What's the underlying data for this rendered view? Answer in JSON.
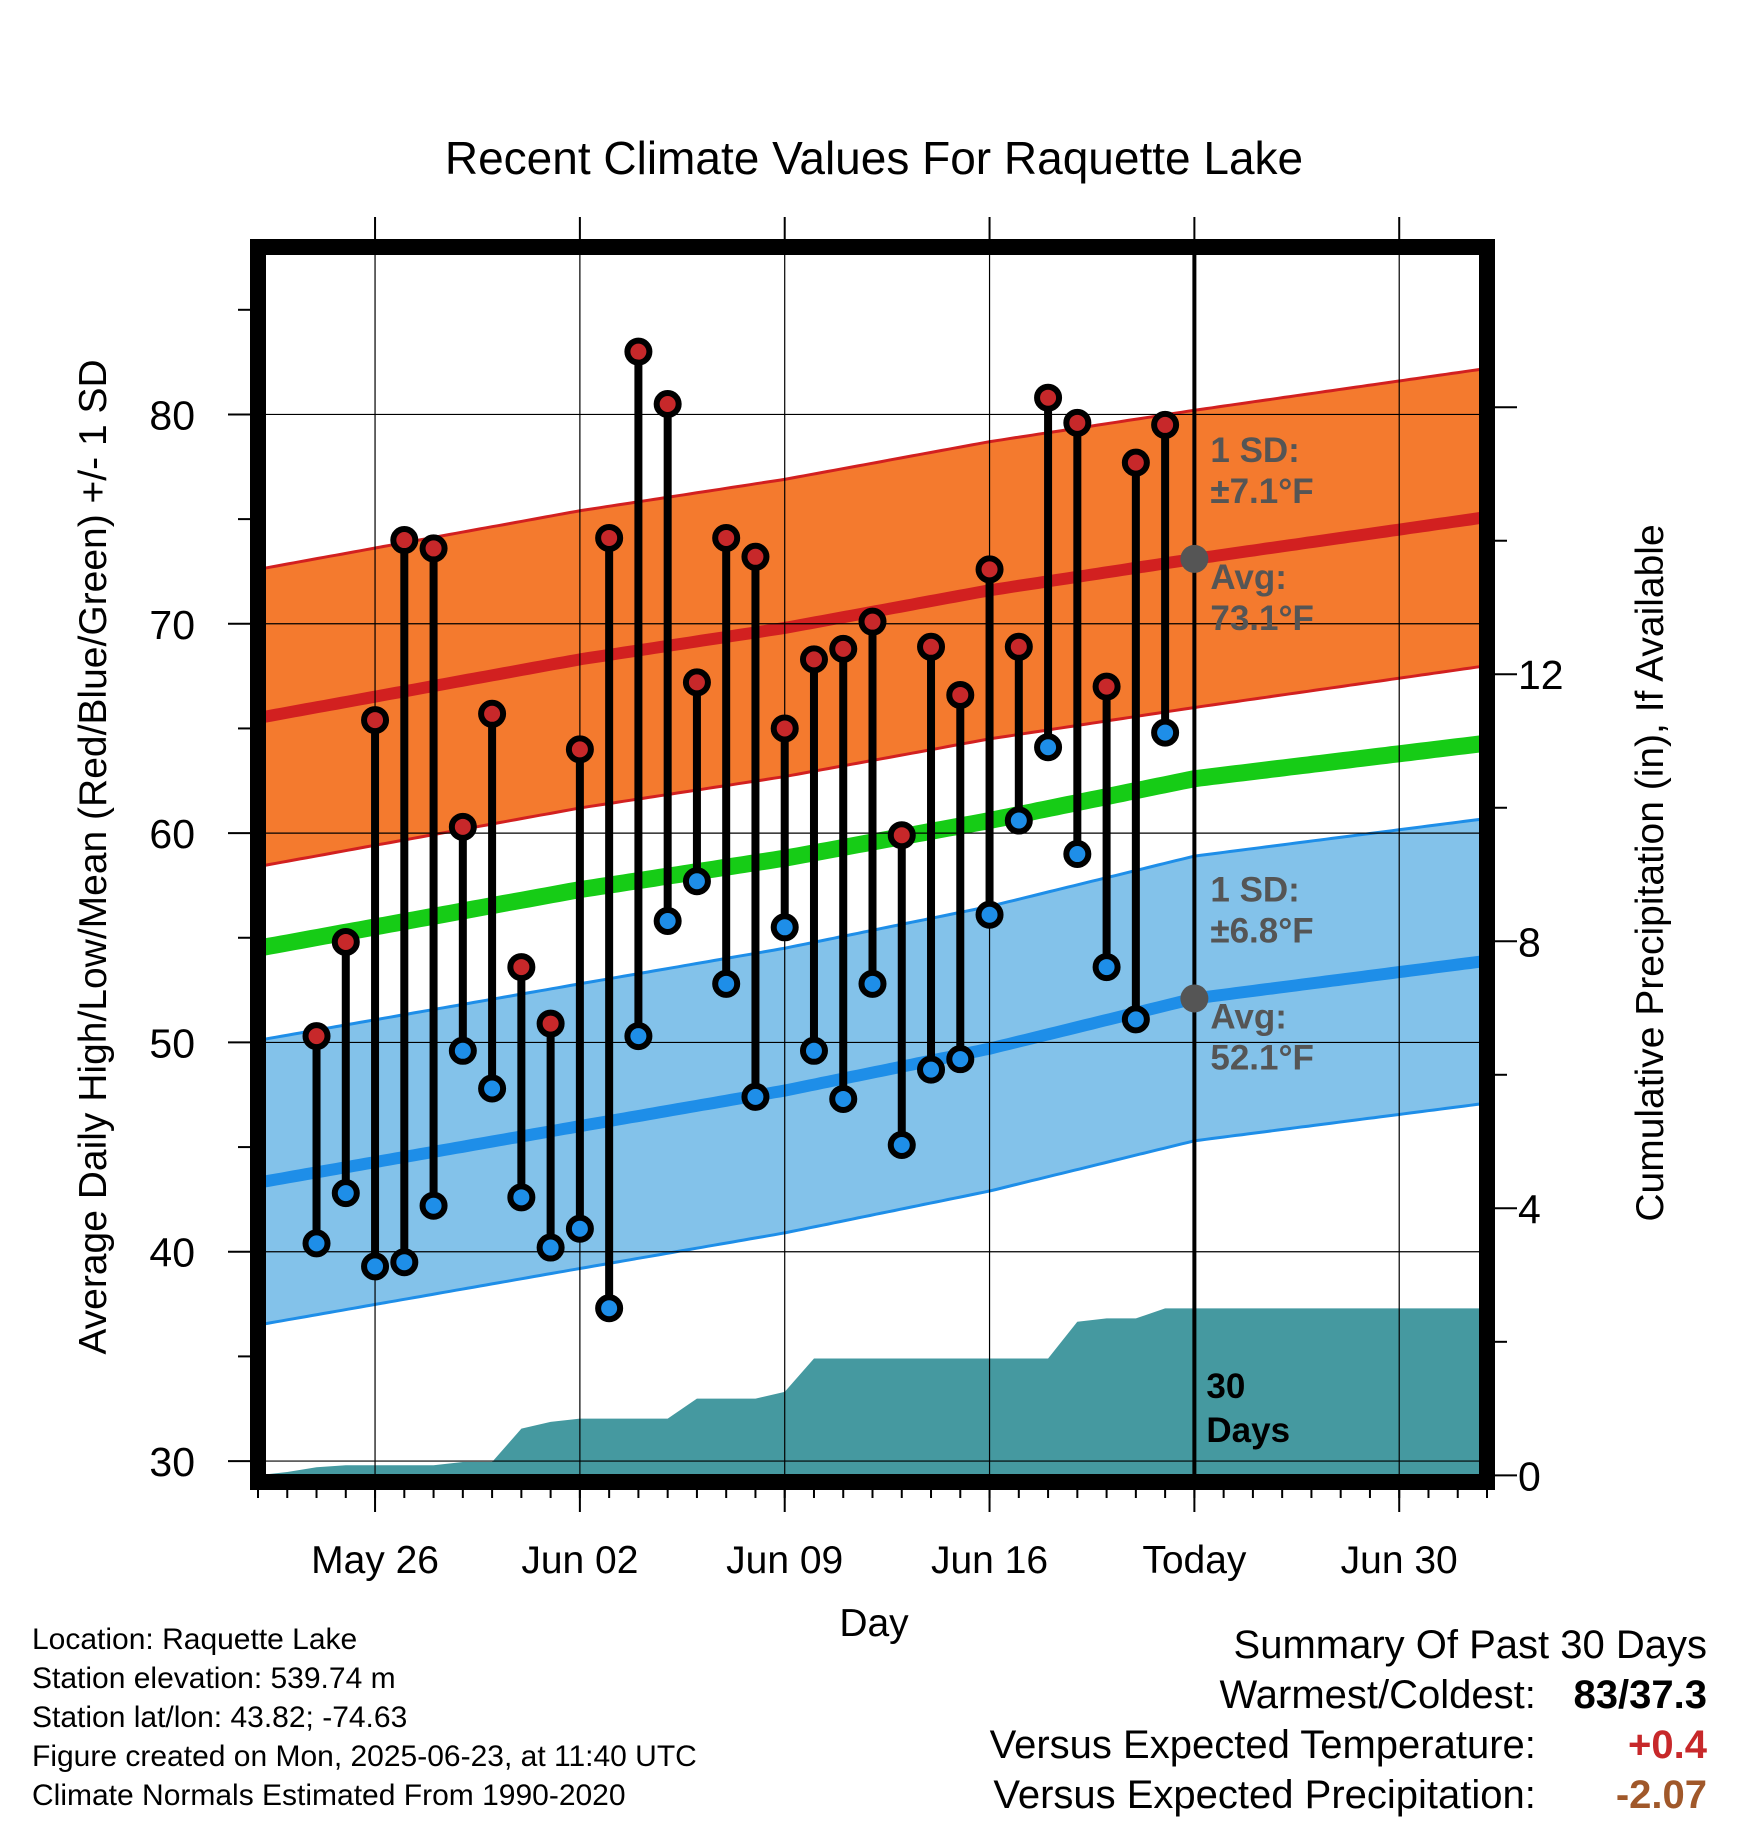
{
  "chart_data": {
    "type": "line",
    "title": "Recent Climate Values For Raquette Lake",
    "xlabel": "Day",
    "ylabel": "Average Daily High/Low/Mean (Red/Blue/Green) +/- 1 SD",
    "y2label": "Cumulative Precipitation (in), If Available",
    "ylim": [
      29,
      88
    ],
    "y_ticks": [
      30,
      40,
      50,
      60,
      70,
      80
    ],
    "y2lim": [
      -0.1,
      18.4
    ],
    "y2_ticks": [
      0,
      4,
      8,
      12
    ],
    "x_range_days": [
      "2025-05-22",
      "2025-07-03"
    ],
    "x_ticks": [
      {
        "date": "2025-05-26",
        "label": "May 26"
      },
      {
        "date": "2025-06-02",
        "label": "Jun 02"
      },
      {
        "date": "2025-06-09",
        "label": "Jun 09"
      },
      {
        "date": "2025-06-16",
        "label": "Jun 16"
      },
      {
        "date": "2025-06-23",
        "label": "Today"
      },
      {
        "date": "2025-06-30",
        "label": "Jun 30"
      }
    ],
    "today": "2025-06-23",
    "grid": true,
    "dates": [
      "2025-05-24",
      "2025-05-25",
      "2025-05-26",
      "2025-05-27",
      "2025-05-28",
      "2025-05-29",
      "2025-05-30",
      "2025-05-31",
      "2025-06-01",
      "2025-06-02",
      "2025-06-03",
      "2025-06-04",
      "2025-06-05",
      "2025-06-06",
      "2025-06-07",
      "2025-06-08",
      "2025-06-09",
      "2025-06-10",
      "2025-06-11",
      "2025-06-12",
      "2025-06-13",
      "2025-06-14",
      "2025-06-15",
      "2025-06-16",
      "2025-06-17",
      "2025-06-18",
      "2025-06-19",
      "2025-06-20",
      "2025-06-21",
      "2025-06-22"
    ],
    "series": [
      {
        "name": "High",
        "color": "#c7282a",
        "values": [
          50.3,
          54.8,
          65.4,
          74.0,
          73.6,
          60.3,
          65.7,
          53.6,
          50.9,
          64.0,
          74.1,
          83.0,
          80.5,
          67.2,
          74.1,
          73.2,
          65.0,
          68.3,
          68.8,
          70.1,
          59.9,
          68.9,
          66.6,
          72.6,
          68.9,
          80.8,
          79.6,
          67.0,
          77.7,
          79.5
        ]
      },
      {
        "name": "Low",
        "color": "#1e8ee8",
        "values": [
          40.4,
          42.8,
          39.3,
          39.5,
          42.2,
          49.6,
          47.8,
          42.6,
          40.2,
          41.1,
          37.3,
          50.3,
          55.8,
          57.7,
          52.8,
          47.4,
          55.5,
          49.6,
          47.3,
          52.8,
          45.1,
          48.7,
          49.2,
          56.1,
          60.6,
          64.1,
          59.0,
          53.6,
          51.1,
          64.8
        ]
      }
    ],
    "normals": {
      "dates": [
        "2025-05-22",
        "2025-06-02",
        "2025-06-09",
        "2025-06-16",
        "2025-06-23",
        "2025-07-03"
      ],
      "avg_high": [
        65.5,
        68.3,
        69.8,
        71.6,
        73.1,
        75.1
      ],
      "high_sd": 7.1,
      "avg_mean": [
        54.5,
        57.3,
        58.8,
        60.6,
        62.6,
        64.3
      ],
      "avg_low": [
        43.3,
        46.0,
        47.7,
        49.7,
        52.1,
        53.9
      ],
      "low_sd": 6.8,
      "colors": {
        "high_band": "#f47a2e",
        "high_line": "#d22020",
        "mean_line": "#16cc16",
        "low_band": "#83c2ea",
        "low_line": "#1e8ee8"
      }
    },
    "precip_cumulative": {
      "color": "#4599a0",
      "dates": [
        "2025-05-22",
        "2025-05-23",
        "2025-05-24",
        "2025-05-25",
        "2025-05-26",
        "2025-05-27",
        "2025-05-28",
        "2025-05-29",
        "2025-05-30",
        "2025-05-31",
        "2025-06-01",
        "2025-06-02",
        "2025-06-03",
        "2025-06-04",
        "2025-06-05",
        "2025-06-06",
        "2025-06-07",
        "2025-06-08",
        "2025-06-09",
        "2025-06-10",
        "2025-06-11",
        "2025-06-12",
        "2025-06-13",
        "2025-06-14",
        "2025-06-15",
        "2025-06-16",
        "2025-06-17",
        "2025-06-18",
        "2025-06-19",
        "2025-06-20",
        "2025-06-21",
        "2025-06-22",
        "2025-07-03"
      ],
      "values": [
        0.0,
        0.05,
        0.12,
        0.15,
        0.15,
        0.15,
        0.15,
        0.2,
        0.2,
        0.7,
        0.8,
        0.85,
        0.85,
        0.85,
        0.85,
        1.15,
        1.15,
        1.15,
        1.25,
        1.75,
        1.75,
        1.75,
        1.75,
        1.75,
        1.75,
        1.75,
        1.75,
        1.75,
        2.3,
        2.35,
        2.35,
        2.5,
        2.5
      ]
    },
    "annotations": {
      "high_sd": {
        "line1": "1 SD:",
        "line2": "±7.1°F"
      },
      "high_avg": {
        "line1": "Avg:",
        "line2": "73.1°F"
      },
      "low_sd": {
        "line1": "1 SD:",
        "line2": "±6.8°F"
      },
      "low_avg": {
        "line1": "Avg:",
        "line2": "52.1°F"
      },
      "window": {
        "line1": "30",
        "line2": "Days"
      }
    }
  },
  "footer": {
    "location": "Location: Raquette Lake",
    "elevation": "Station elevation: 539.74 m",
    "latlon": "Station lat/lon: 43.82; -74.63",
    "created": "Figure created on Mon, 2025-06-23, at 11:40 UTC",
    "normals": "Climate Normals Estimated From 1990-2020"
  },
  "summary": {
    "title": "Summary Of Past 30 Days",
    "warmest_label": "Warmest/Coldest:",
    "warmest_value": "83/37.3",
    "temp_label": "Versus Expected Temperature:",
    "temp_value": "+0.4",
    "precip_label": "Versus Expected Precipitation:",
    "precip_value": "-2.07"
  }
}
